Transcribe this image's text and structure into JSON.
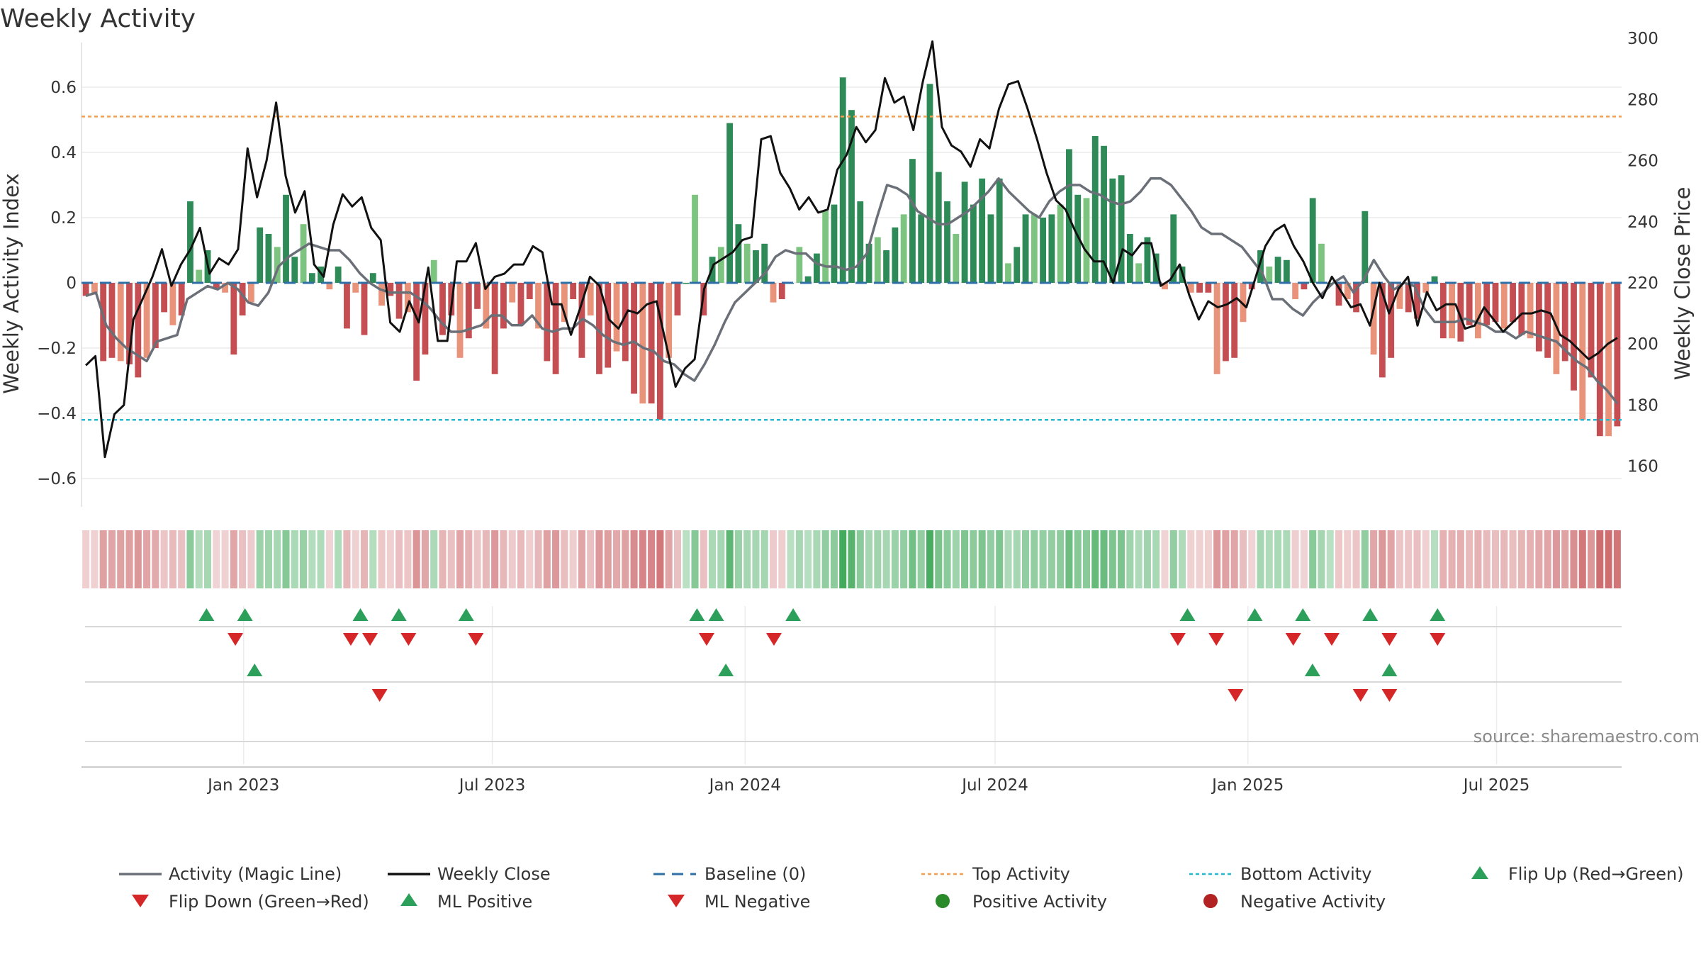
{
  "chart_data": {
    "type": "bar",
    "title": "Weekly Activity",
    "ylabel_left": "Weekly Activity Index",
    "ylabel_right": "Weekly Close Price",
    "ylim_left": [
      -0.7,
      0.7
    ],
    "ylim_right": [
      155,
      305
    ],
    "yticks_left": [
      0.6,
      0.4,
      0.2,
      0,
      -0.2,
      -0.4,
      -0.6
    ],
    "yticks_left_labels": [
      "0.6",
      "0.4",
      "0.2",
      "0",
      "−0.2",
      "−0.4",
      "−0.6"
    ],
    "yticks_right": [
      300,
      280,
      260,
      240,
      220,
      200,
      180,
      160
    ],
    "x_start": "2022-09-05",
    "x_end": "2025-09-30",
    "x_ticks": [
      {
        "date": "2023-01-01",
        "label": "Jan 2023"
      },
      {
        "date": "2023-07-01",
        "label": "Jul 2023"
      },
      {
        "date": "2024-01-01",
        "label": "Jan 2024"
      },
      {
        "date": "2024-07-01",
        "label": "Jul 2024"
      },
      {
        "date": "2025-01-01",
        "label": "Jan 2025"
      },
      {
        "date": "2025-07-01",
        "label": "Jul 2025"
      }
    ],
    "top_activity": 0.51,
    "bottom_activity": -0.42,
    "baseline": 0,
    "activity": [
      -0.04,
      -0.03,
      -0.24,
      -0.23,
      -0.24,
      -0.25,
      -0.29,
      -0.23,
      -0.2,
      -0.09,
      -0.13,
      -0.1,
      0.25,
      0.04,
      0.1,
      -0.02,
      -0.03,
      -0.22,
      -0.1,
      -0.06,
      0.17,
      0.15,
      0.11,
      0.27,
      0.08,
      0.18,
      0.03,
      0.05,
      -0.02,
      0.05,
      -0.14,
      -0.03,
      -0.16,
      0.03,
      -0.07,
      -0.04,
      -0.11,
      -0.09,
      -0.3,
      -0.22,
      0.07,
      -0.16,
      -0.1,
      -0.23,
      -0.17,
      -0.08,
      -0.14,
      -0.28,
      -0.14,
      -0.06,
      -0.13,
      -0.05,
      -0.14,
      -0.24,
      -0.28,
      -0.12,
      -0.05,
      -0.23,
      -0.1,
      -0.28,
      -0.26,
      -0.21,
      -0.24,
      -0.34,
      -0.37,
      -0.37,
      -0.42,
      -0.23,
      -0.1,
      0.0,
      0.27,
      -0.1,
      0.08,
      0.11,
      0.49,
      0.18,
      0.12,
      0.1,
      0.12,
      -0.06,
      -0.05,
      0.0,
      0.11,
      0.02,
      0.09,
      0.22,
      0.24,
      0.63,
      0.53,
      0.25,
      0.12,
      0.14,
      0.1,
      0.17,
      0.21,
      0.38,
      0.21,
      0.61,
      0.34,
      0.25,
      0.15,
      0.31,
      0.24,
      0.32,
      0.21,
      0.32,
      0.06,
      0.11,
      0.21,
      0.21,
      0.2,
      0.21,
      0.24,
      0.41,
      0.27,
      0.26,
      0.45,
      0.42,
      0.32,
      0.33,
      0.15,
      0.06,
      0.14,
      0.09,
      -0.02,
      0.21,
      0.05,
      -0.03,
      -0.03,
      -0.03,
      -0.28,
      -0.24,
      -0.23,
      -0.12,
      -0.02,
      0.1,
      0.05,
      0.08,
      0.07,
      -0.05,
      -0.02,
      0.26,
      0.12,
      0.0,
      -0.07,
      -0.05,
      -0.09,
      0.22,
      -0.22,
      -0.29,
      -0.23,
      -0.08,
      -0.09,
      -0.11,
      -0.03,
      0.02,
      -0.17,
      -0.17,
      -0.18,
      -0.13,
      -0.17,
      -0.13,
      -0.12,
      -0.14,
      -0.12,
      -0.16,
      -0.17,
      -0.21,
      -0.23,
      -0.28,
      -0.24,
      -0.33,
      -0.42,
      -0.29,
      -0.47,
      -0.47,
      -0.44
    ],
    "magic_line": [
      -0.04,
      -0.03,
      -0.13,
      -0.17,
      -0.2,
      -0.22,
      -0.24,
      -0.18,
      -0.17,
      -0.16,
      -0.05,
      -0.03,
      -0.01,
      -0.02,
      0.0,
      -0.02,
      -0.06,
      -0.07,
      -0.03,
      0.05,
      0.08,
      0.1,
      0.12,
      0.11,
      0.1,
      0.1,
      0.07,
      0.03,
      0.0,
      -0.02,
      -0.03,
      -0.03,
      -0.03,
      -0.05,
      -0.08,
      -0.12,
      -0.15,
      -0.15,
      -0.14,
      -0.13,
      -0.1,
      -0.1,
      -0.13,
      -0.13,
      -0.1,
      -0.14,
      -0.15,
      -0.14,
      -0.14,
      -0.11,
      -0.13,
      -0.16,
      -0.18,
      -0.19,
      -0.18,
      -0.2,
      -0.21,
      -0.24,
      -0.25,
      -0.28,
      -0.3,
      -0.25,
      -0.19,
      -0.12,
      -0.06,
      -0.03,
      0.0,
      0.03,
      0.08,
      0.1,
      0.09,
      0.09,
      0.06,
      0.05,
      0.05,
      0.04,
      0.05,
      0.09,
      0.2,
      0.3,
      0.29,
      0.27,
      0.22,
      0.2,
      0.18,
      0.18,
      0.2,
      0.22,
      0.25,
      0.28,
      0.32,
      0.28,
      0.25,
      0.22,
      0.2,
      0.25,
      0.28,
      0.3,
      0.3,
      0.28,
      0.27,
      0.25,
      0.24,
      0.25,
      0.28,
      0.32,
      0.32,
      0.3,
      0.26,
      0.22,
      0.17,
      0.15,
      0.15,
      0.13,
      0.11,
      0.07,
      0.03,
      -0.05,
      -0.05,
      -0.08,
      -0.1,
      -0.06,
      -0.03,
      0.0,
      0.02,
      -0.03,
      0.01,
      0.07,
      0.02,
      -0.02,
      0.0,
      -0.01,
      -0.08,
      -0.12,
      -0.12,
      -0.12,
      -0.11,
      -0.12,
      -0.13,
      -0.15,
      -0.15,
      -0.17,
      -0.15,
      -0.16,
      -0.17,
      -0.18,
      -0.21,
      -0.24,
      -0.26,
      -0.3,
      -0.33,
      -0.37
    ],
    "close": [
      193,
      196,
      163,
      177,
      180,
      208,
      215,
      222,
      231,
      219,
      226,
      231,
      238,
      223,
      228,
      226,
      231,
      264,
      248,
      260,
      279,
      255,
      243,
      250,
      226,
      222,
      239,
      249,
      245,
      248,
      238,
      234,
      207,
      204,
      214,
      207,
      225,
      201,
      201,
      227,
      227,
      233,
      218,
      222,
      223,
      226,
      226,
      232,
      230,
      213,
      213,
      203,
      212,
      222,
      219,
      208,
      205,
      211,
      210,
      213,
      214,
      200,
      186,
      192,
      195,
      218,
      226,
      228,
      230,
      234,
      235,
      267,
      268,
      256,
      251,
      244,
      248,
      243,
      244,
      257,
      262,
      271,
      266,
      270,
      287,
      279,
      281,
      270,
      286,
      299,
      271,
      265,
      263,
      258,
      267,
      264,
      277,
      285,
      286,
      277,
      267,
      256,
      247,
      244,
      237,
      231,
      227,
      227,
      220,
      231,
      229,
      233,
      233,
      219,
      221,
      226,
      216,
      208,
      214,
      212,
      213,
      215,
      212,
      222,
      232,
      237,
      239,
      232,
      227,
      220,
      215,
      222,
      217,
      212,
      213,
      206,
      220,
      210,
      218,
      222,
      206,
      217,
      211,
      213,
      213,
      205,
      206,
      212,
      208,
      204,
      207,
      210,
      210,
      211,
      210,
      203,
      201,
      198,
      195,
      197,
      200,
      202
    ],
    "strip_color_scale": "activity-index",
    "markers_row1": {
      "ml_positive": [
        "2022-12-05",
        "2023-01-02",
        "2023-03-27",
        "2023-04-24",
        "2023-06-12",
        "2023-11-27",
        "2023-12-11",
        "2024-02-05",
        "2024-11-18",
        "2025-01-06",
        "2025-02-10",
        "2025-03-31",
        "2025-05-19"
      ],
      "ml_negative": [
        "2022-12-26",
        "2023-03-20",
        "2023-04-03",
        "2023-05-01",
        "2023-06-19",
        "2023-12-04",
        "2024-01-22",
        "2024-11-11",
        "2024-12-09",
        "2025-02-03",
        "2025-03-03",
        "2025-04-14",
        "2025-05-19"
      ]
    },
    "markers_row2": {
      "flip_up": [
        "2023-01-09",
        "2023-12-18",
        "2025-02-17",
        "2025-04-14"
      ],
      "flip_down": [
        "2023-04-10",
        "2024-12-23",
        "2025-03-24",
        "2025-04-14"
      ]
    },
    "legend": [
      "Activity (Magic Line)",
      "Weekly Close",
      "Baseline (0)",
      "Top Activity",
      "Bottom Activity",
      "Flip Up (Red→Green)",
      "Flip Down (Green→Red)",
      "ML Positive",
      "ML Negative",
      "Positive Activity",
      "Negative Activity"
    ],
    "source": "source: sharemaestro.com"
  },
  "colors": {
    "dark_green": "#2e8b57",
    "light_green": "#7cc47f",
    "dark_red": "#c44e52",
    "light_red": "#e8937a",
    "magic_line": "#6b7078",
    "close": "#111111",
    "baseline": "#2f6fa8",
    "top": "#f0a050",
    "bottom": "#22b8cf",
    "marker_up": "#2ca05a",
    "marker_down": "#d62728",
    "pos_dot": "#2a8a2a",
    "neg_dot": "#b22222"
  }
}
